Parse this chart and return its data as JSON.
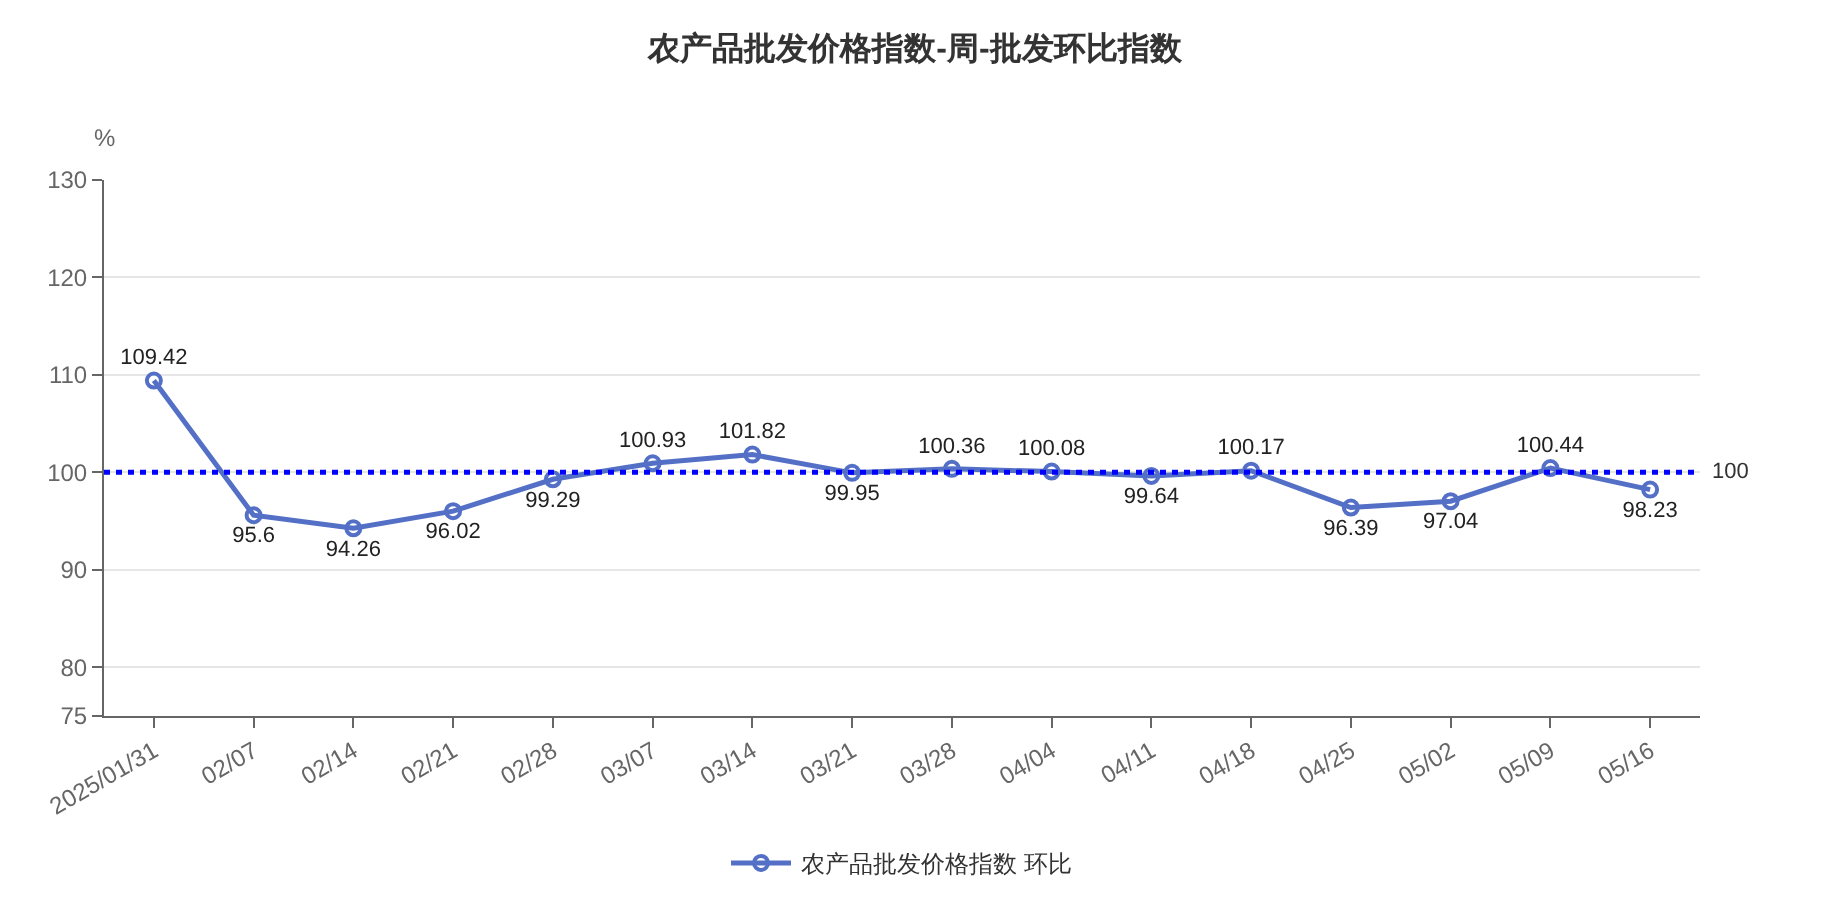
{
  "chart_data": {
    "type": "line",
    "title": "农产品批发价格指数-周-批发环比指数",
    "ylabel": "%",
    "categories": [
      "2025/01/31",
      "02/07",
      "02/14",
      "02/21",
      "02/28",
      "03/07",
      "03/14",
      "03/21",
      "03/28",
      "04/04",
      "04/11",
      "04/18",
      "04/25",
      "05/02",
      "05/09",
      "05/16"
    ],
    "series": [
      {
        "name": "农产品批发价格指数 环比",
        "color": "#5470c6",
        "values": [
          109.42,
          95.6,
          94.26,
          96.02,
          99.29,
          100.93,
          101.82,
          99.95,
          100.36,
          100.08,
          99.64,
          100.17,
          96.39,
          97.04,
          100.44,
          98.23
        ]
      }
    ],
    "ylim": [
      75,
      130
    ],
    "yticks": [
      75,
      80,
      90,
      100,
      110,
      120,
      130
    ],
    "ref_lines": [
      {
        "axis": "y",
        "value": 100,
        "label": "100",
        "color": "#0000ff",
        "line_style": "dotted"
      }
    ],
    "data_labels": true,
    "grid": "y",
    "legend": "bottom",
    "marker": "circle",
    "line_style": "solid"
  }
}
